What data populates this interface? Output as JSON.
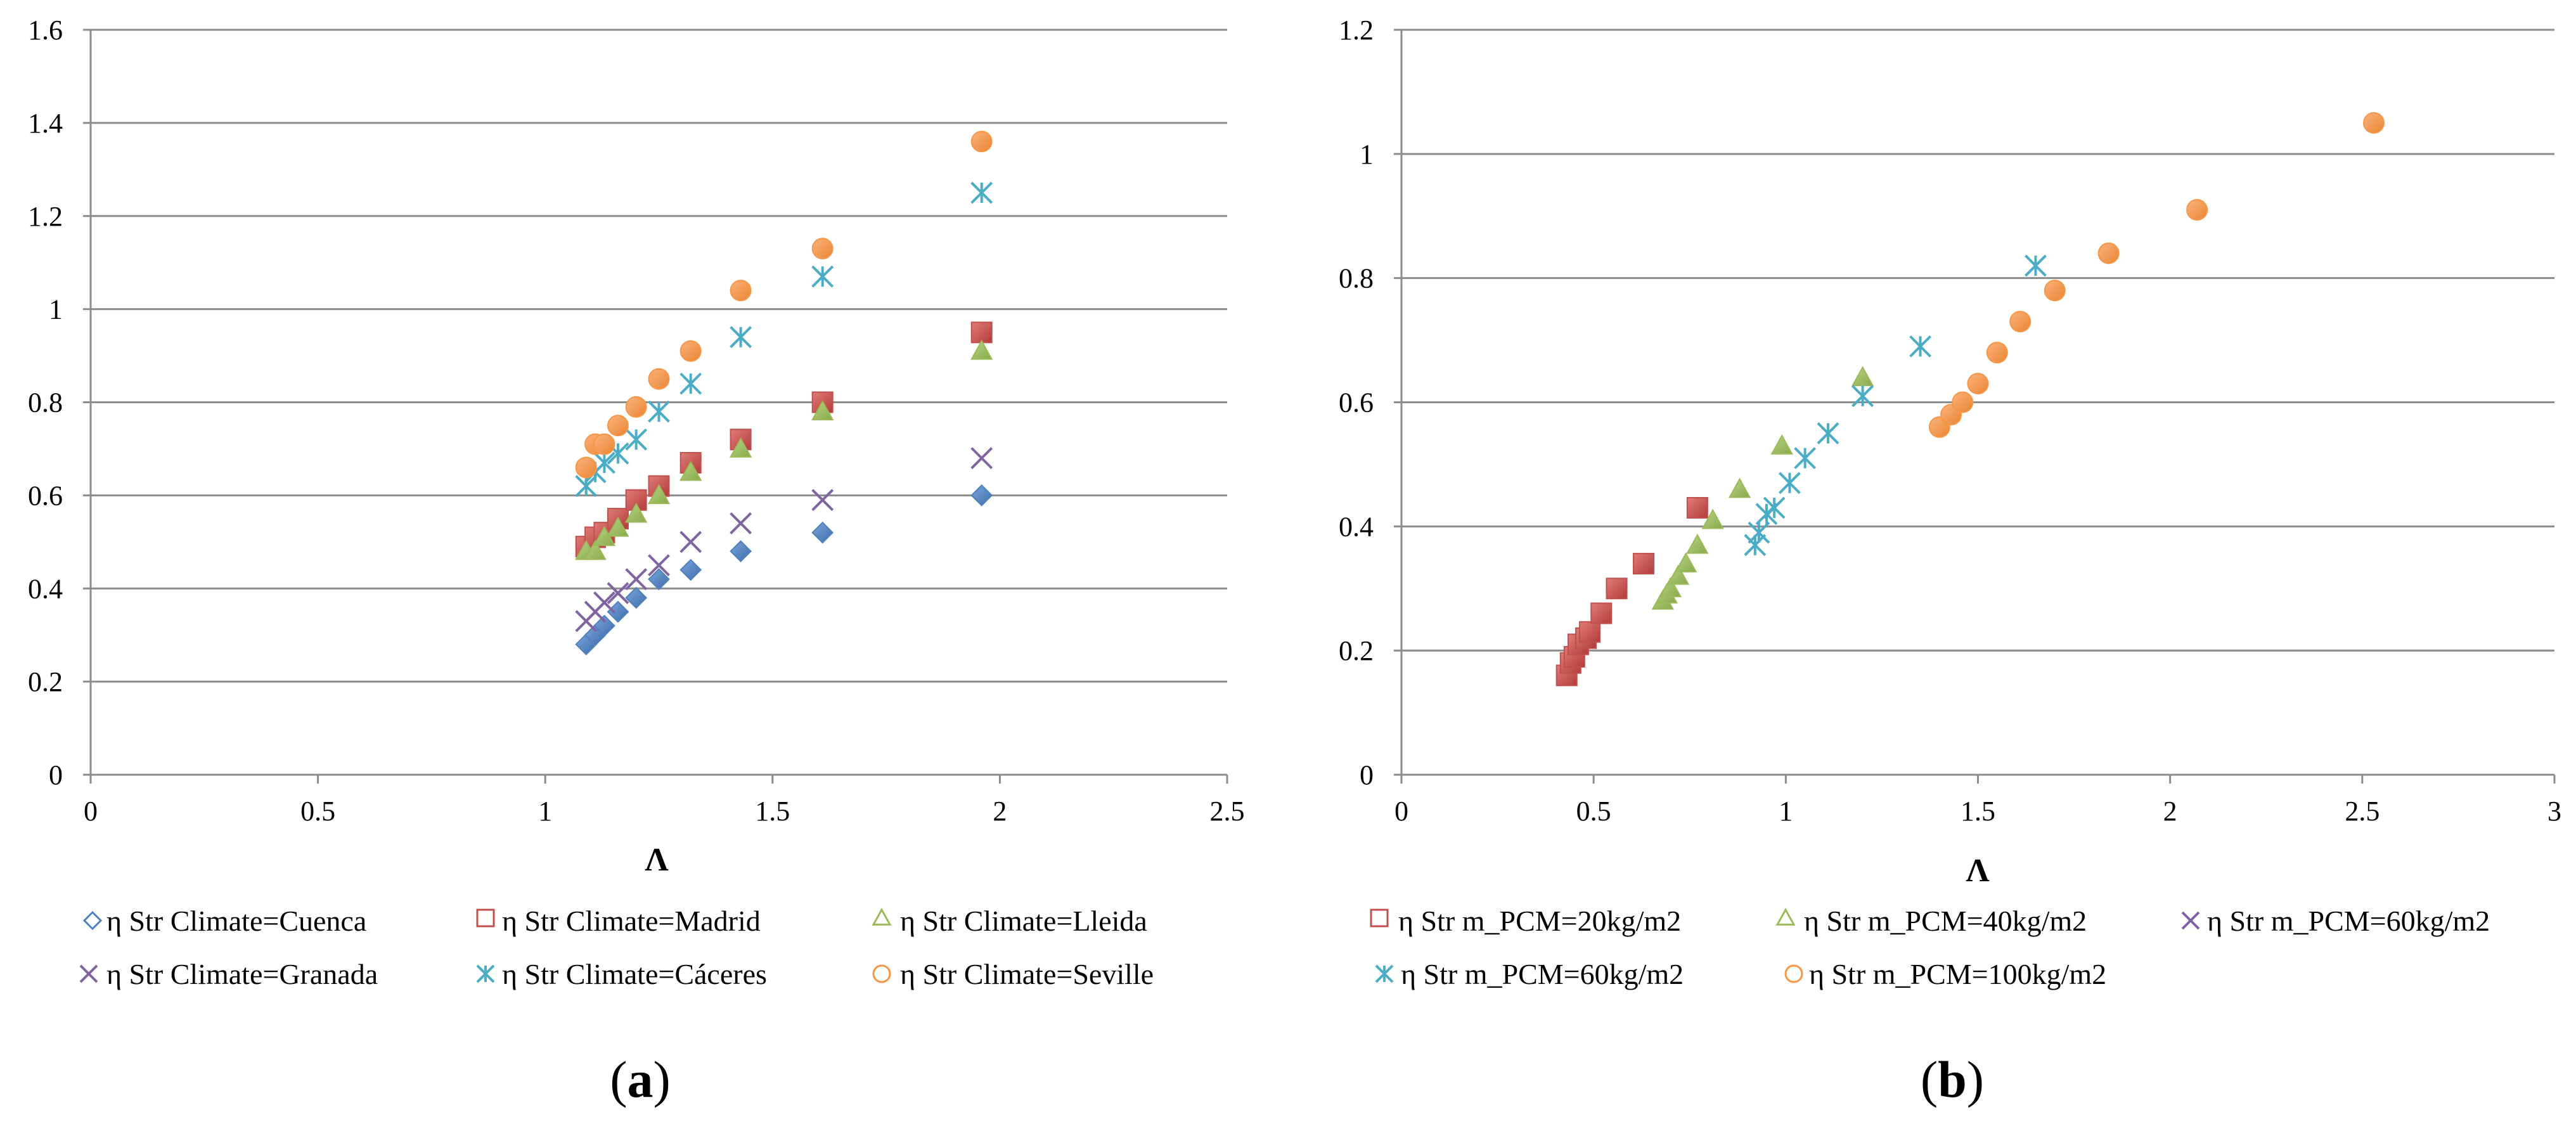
{
  "colors": {
    "cuenca": "#4f81bd",
    "madrid": "#c0504d",
    "lleida": "#9bbb59",
    "granada": "#8064a2",
    "caceres": "#4bacc6",
    "seville": "#f79646",
    "grid": "#8c8c8c",
    "axis": "#8c8c8c"
  },
  "chart_data": [
    {
      "type": "scatter",
      "panel_label": "a",
      "xlabel": "Λ",
      "ylabel": "",
      "xlim": [
        0,
        2.5
      ],
      "ylim": [
        0,
        1.6
      ],
      "x_ticks": [
        0,
        0.5,
        1,
        1.5,
        2,
        2.5
      ],
      "y_ticks": [
        0,
        0.2,
        0.4,
        0.6,
        0.8,
        1,
        1.2,
        1.4,
        1.6
      ],
      "x_tick_labels": [
        "0",
        "0.5",
        "1",
        "1.5",
        "2",
        "2.5"
      ],
      "y_tick_labels": [
        "0",
        "0.2",
        "0.4",
        "0.6",
        "0.8",
        "1",
        "1.2",
        "1.4",
        "1.6"
      ],
      "grid": true,
      "legend_position": "bottom",
      "series": [
        {
          "name": "η Str Climate=Cuenca",
          "marker": "diamond",
          "color_key": "cuenca",
          "x": [
            1.09,
            1.11,
            1.13,
            1.16,
            1.2,
            1.25,
            1.32,
            1.43,
            1.61,
            1.96
          ],
          "y": [
            0.28,
            0.3,
            0.32,
            0.35,
            0.38,
            0.42,
            0.44,
            0.48,
            0.52,
            0.6
          ]
        },
        {
          "name": "η Str Climate=Madrid",
          "marker": "square",
          "color_key": "madrid",
          "x": [
            1.09,
            1.11,
            1.13,
            1.16,
            1.2,
            1.25,
            1.32,
            1.43,
            1.61,
            1.96
          ],
          "y": [
            0.49,
            0.51,
            0.52,
            0.55,
            0.59,
            0.62,
            0.67,
            0.72,
            0.8,
            0.95
          ]
        },
        {
          "name": "η Str Climate=Lleida",
          "marker": "triangle",
          "color_key": "lleida",
          "x": [
            1.09,
            1.11,
            1.13,
            1.16,
            1.2,
            1.25,
            1.32,
            1.43,
            1.61,
            1.96
          ],
          "y": [
            0.48,
            0.48,
            0.51,
            0.53,
            0.56,
            0.6,
            0.65,
            0.7,
            0.78,
            0.91
          ]
        },
        {
          "name": "η Str Climate=Granada",
          "marker": "x",
          "color_key": "granada",
          "x": [
            1.09,
            1.11,
            1.13,
            1.16,
            1.2,
            1.25,
            1.32,
            1.43,
            1.61,
            1.96
          ],
          "y": [
            0.33,
            0.35,
            0.37,
            0.39,
            0.42,
            0.45,
            0.5,
            0.54,
            0.59,
            0.68
          ]
        },
        {
          "name": "η Str Climate=Cáceres",
          "marker": "asterisk",
          "color_key": "caceres",
          "x": [
            1.09,
            1.11,
            1.13,
            1.16,
            1.2,
            1.25,
            1.32,
            1.43,
            1.61,
            1.96
          ],
          "y": [
            0.62,
            0.65,
            0.67,
            0.69,
            0.72,
            0.78,
            0.84,
            0.94,
            1.07,
            1.25
          ]
        },
        {
          "name": "η Str Climate=Seville",
          "marker": "circle",
          "color_key": "seville",
          "x": [
            1.09,
            1.11,
            1.13,
            1.16,
            1.2,
            1.25,
            1.32,
            1.43,
            1.61,
            1.96
          ],
          "y": [
            0.66,
            0.71,
            0.71,
            0.75,
            0.79,
            0.85,
            0.91,
            1.04,
            1.13,
            1.36
          ]
        }
      ]
    },
    {
      "type": "scatter",
      "panel_label": "b",
      "xlabel": "Λ",
      "ylabel": "",
      "xlim": [
        0,
        3
      ],
      "ylim": [
        0,
        1.2
      ],
      "x_ticks": [
        0,
        0.5,
        1,
        1.5,
        2,
        2.5,
        3
      ],
      "y_ticks": [
        0,
        0.2,
        0.4,
        0.6,
        0.8,
        1,
        1.2
      ],
      "x_tick_labels": [
        "0",
        "0.5",
        "1",
        "1.5",
        "2",
        "2.5",
        "3"
      ],
      "y_tick_labels": [
        "0",
        "0.2",
        "0.4",
        "0.6",
        "0.8",
        "1",
        "1.2"
      ],
      "grid": true,
      "legend_position": "bottom",
      "series": [
        {
          "name": "η Str m_PCM=20kg/m2",
          "marker": "square",
          "color_key": "madrid",
          "x": [
            0.43,
            0.44,
            0.45,
            0.46,
            0.48,
            0.49,
            0.52,
            0.56,
            0.63,
            0.77
          ],
          "y": [
            0.16,
            0.18,
            0.19,
            0.21,
            0.22,
            0.23,
            0.26,
            0.3,
            0.34,
            0.43
          ]
        },
        {
          "name": "η Str m_PCM=40kg/m2",
          "marker": "triangle",
          "color_key": "lleida",
          "x": [
            0.68,
            0.69,
            0.7,
            0.72,
            0.74,
            0.77,
            0.81,
            0.88,
            0.99,
            1.2
          ],
          "y": [
            0.28,
            0.29,
            0.3,
            0.32,
            0.34,
            0.37,
            0.41,
            0.46,
            0.53,
            0.64
          ]
        },
        {
          "name": "η Str m_PCM=60kg/m2",
          "marker": "x",
          "color_key": "granada",
          "x": [],
          "y": []
        },
        {
          "name": "η Str m_PCM=60kg/m2",
          "marker": "asterisk",
          "color_key": "caceres",
          "x": [
            0.92,
            0.93,
            0.95,
            0.97,
            1.01,
            1.05,
            1.11,
            1.2,
            1.35,
            1.65
          ],
          "y": [
            0.37,
            0.39,
            0.42,
            0.43,
            0.47,
            0.51,
            0.55,
            0.61,
            0.69,
            0.82
          ]
        },
        {
          "name": "η Str m_PCM=100kg/m2",
          "marker": "circle",
          "color_key": "seville",
          "x": [
            1.4,
            1.43,
            1.46,
            1.5,
            1.55,
            1.61,
            1.7,
            1.84,
            2.07,
            2.53
          ],
          "y": [
            0.56,
            0.58,
            0.6,
            0.63,
            0.68,
            0.73,
            0.78,
            0.84,
            0.91,
            1.05
          ]
        }
      ]
    }
  ]
}
